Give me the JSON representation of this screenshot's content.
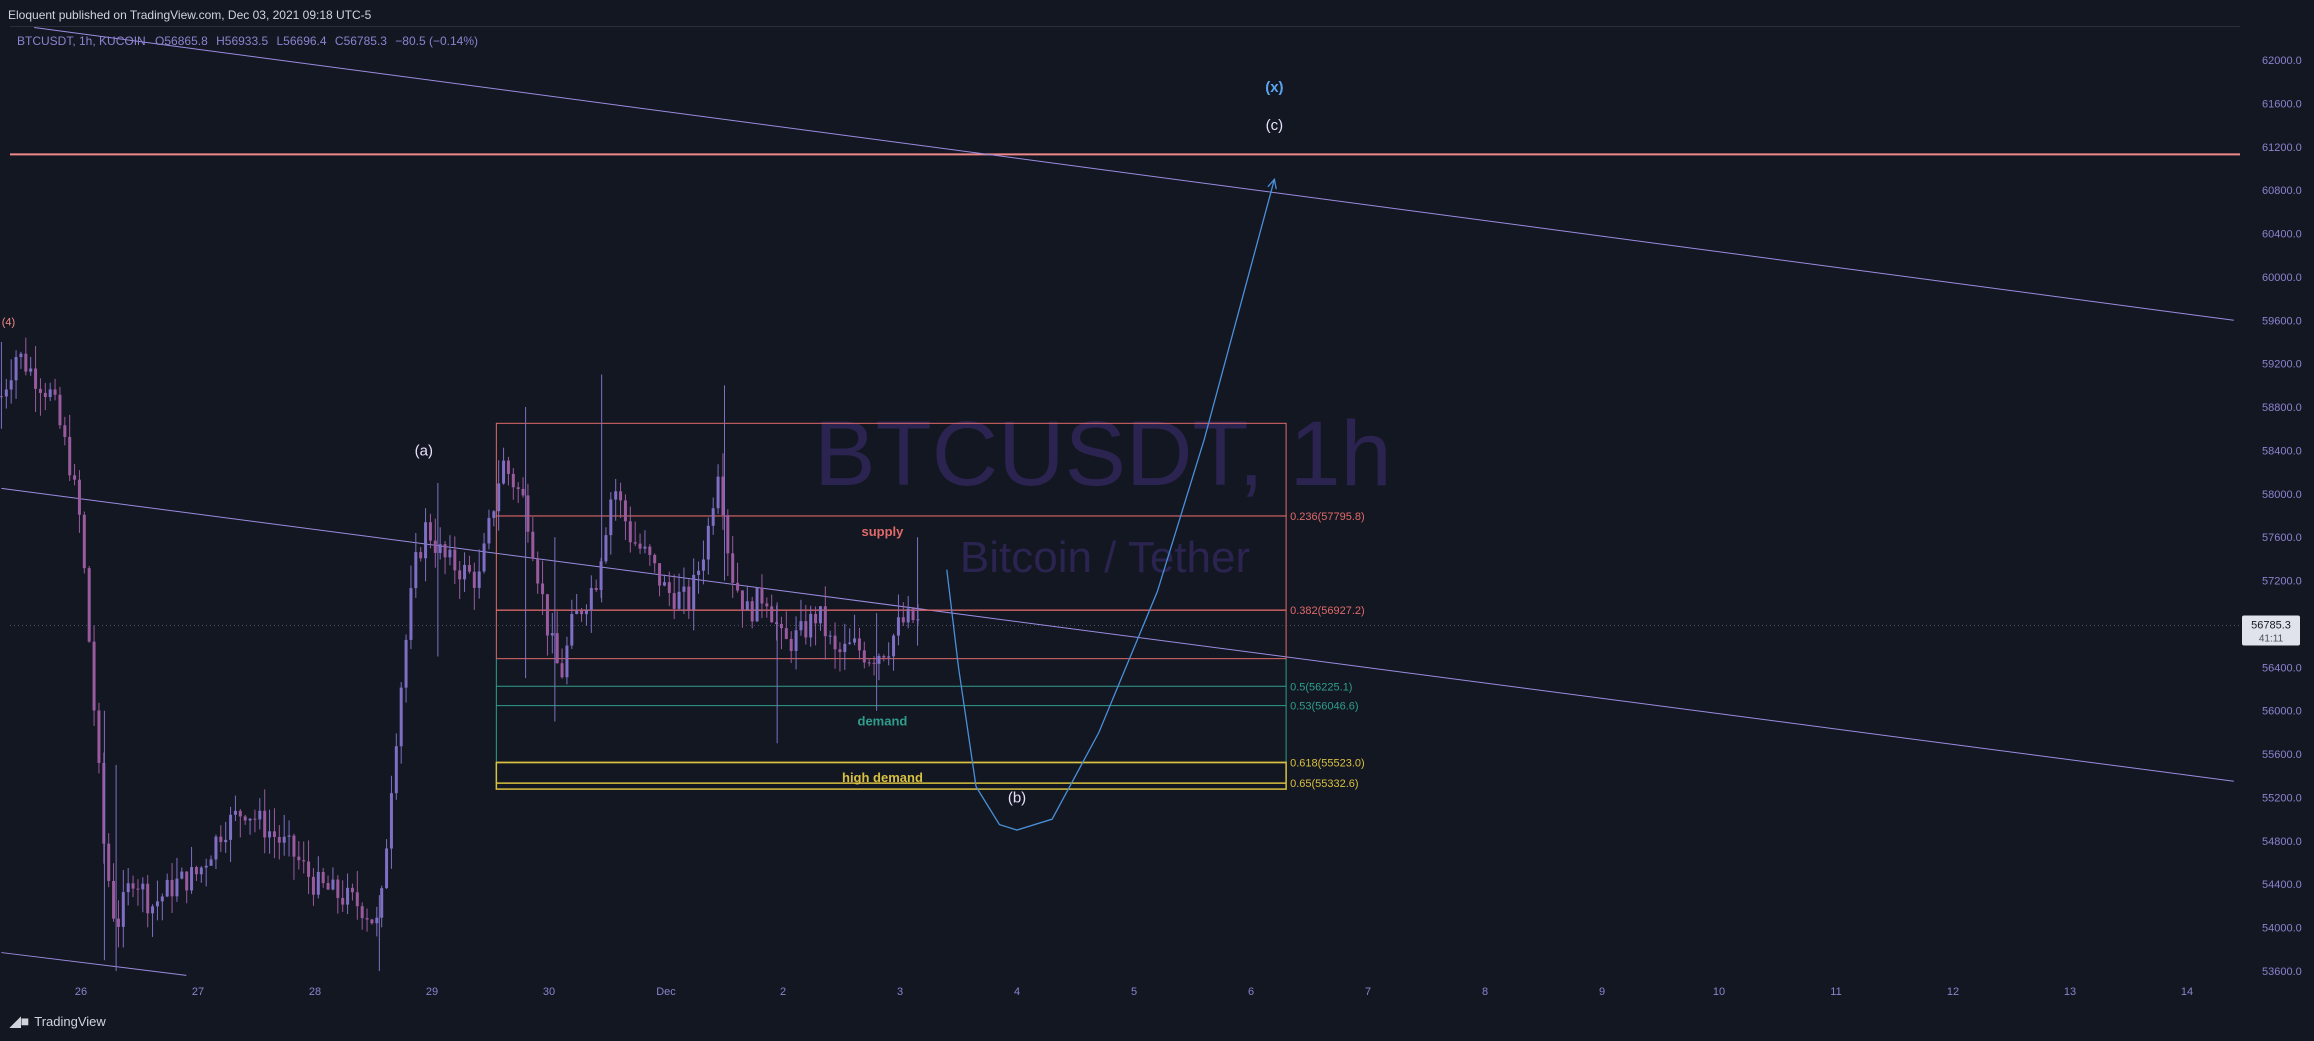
{
  "header": {
    "published": "Eloquent published on TradingView.com, Dec 03, 2021 09:18 UTC-5"
  },
  "symbol_line": {
    "symbol": "BTCUSDT, 1h, KUCOIN",
    "open": "O56865.8",
    "high": "H56933.5",
    "low": "L56696.4",
    "close": "C56785.3",
    "change": "−80.5 (−0.14%)"
  },
  "watermark": {
    "title": "BTCUSDT, 1h",
    "subtitle": "Bitcoin / Tether"
  },
  "footer": {
    "brand": "TradingView"
  },
  "colors": {
    "background": "#131722",
    "candle": "#7e6fc4",
    "candle_down": "#9a5a9e",
    "trendline": "#9b8ce0",
    "resistance": "#f08a8a",
    "projection": "#4a8fd8",
    "supply_box": "#e06a6a",
    "demand_line": "#2f9d8c",
    "high_demand": "#d8c040"
  },
  "chart_data": {
    "type": "candlestick",
    "symbol": "BTCUSDT",
    "timeframe": "1h",
    "exchange": "KUCOIN",
    "last_price": 56785.3,
    "price_label": "56785.3",
    "countdown_label": "41:11",
    "ylim": [
      53500,
      62300
    ],
    "y_ticks": [
      {
        "value": 62000,
        "label": "62000.0"
      },
      {
        "value": 61600,
        "label": "61600.0"
      },
      {
        "value": 61200,
        "label": "61200.0"
      },
      {
        "value": 60800,
        "label": "60800.0"
      },
      {
        "value": 60400,
        "label": "60400.0"
      },
      {
        "value": 60000,
        "label": "60000.0"
      },
      {
        "value": 59600,
        "label": "59600.0"
      },
      {
        "value": 59200,
        "label": "59200.0"
      },
      {
        "value": 58800,
        "label": "58800.0"
      },
      {
        "value": 58400,
        "label": "58400.0"
      },
      {
        "value": 58000,
        "label": "58000.0"
      },
      {
        "value": 57600,
        "label": "57600.0"
      },
      {
        "value": 57200,
        "label": "57200.0"
      },
      {
        "value": 56400,
        "label": "56400.0"
      },
      {
        "value": 56000,
        "label": "56000.0"
      },
      {
        "value": 55600,
        "label": "55600.0"
      },
      {
        "value": 55200,
        "label": "55200.0"
      },
      {
        "value": 54800,
        "label": "54800.0"
      },
      {
        "value": 54400,
        "label": "54400.0"
      },
      {
        "value": 54000,
        "label": "54000.0"
      },
      {
        "value": 53600,
        "label": "53600.0"
      }
    ],
    "x_ticks": [
      {
        "t": 1,
        "label": "26"
      },
      {
        "t": 2,
        "label": "27"
      },
      {
        "t": 3,
        "label": "28"
      },
      {
        "t": 4,
        "label": "29"
      },
      {
        "t": 5,
        "label": "30"
      },
      {
        "t": 6,
        "label": "Dec"
      },
      {
        "t": 7,
        "label": "2"
      },
      {
        "t": 8,
        "label": "3"
      },
      {
        "t": 9,
        "label": "4"
      },
      {
        "t": 10,
        "label": "5"
      },
      {
        "t": 11,
        "label": "6"
      },
      {
        "t": 12,
        "label": "7"
      },
      {
        "t": 13,
        "label": "8"
      },
      {
        "t": 14,
        "label": "9"
      },
      {
        "t": 15,
        "label": "10"
      },
      {
        "t": 16,
        "label": "11"
      },
      {
        "t": 17,
        "label": "12"
      },
      {
        "t": 18,
        "label": "13"
      },
      {
        "t": 19,
        "label": "14"
      }
    ],
    "xlim": [
      0.32,
      19.4
    ],
    "price_path": [
      [
        0.32,
        58900
      ],
      [
        0.45,
        59300
      ],
      [
        0.6,
        59100
      ],
      [
        0.75,
        58900
      ],
      [
        0.9,
        58300
      ],
      [
        1.0,
        57700
      ],
      [
        1.1,
        56200
      ],
      [
        1.2,
        54700
      ],
      [
        1.3,
        54000
      ],
      [
        1.45,
        54500
      ],
      [
        1.6,
        54200
      ],
      [
        1.8,
        54400
      ],
      [
        2.0,
        54500
      ],
      [
        2.2,
        54900
      ],
      [
        2.4,
        55100
      ],
      [
        2.6,
        54900
      ],
      [
        2.8,
        54700
      ],
      [
        3.0,
        54400
      ],
      [
        3.2,
        54300
      ],
      [
        3.4,
        54200
      ],
      [
        3.55,
        54000
      ],
      [
        3.65,
        55300
      ],
      [
        3.75,
        56400
      ],
      [
        3.85,
        57300
      ],
      [
        3.95,
        57700
      ],
      [
        4.1,
        57400
      ],
      [
        4.25,
        57300
      ],
      [
        4.4,
        57200
      ],
      [
        4.6,
        58300
      ],
      [
        4.8,
        57900
      ],
      [
        5.0,
        56700
      ],
      [
        5.1,
        56300
      ],
      [
        5.2,
        56800
      ],
      [
        5.4,
        57200
      ],
      [
        5.55,
        58100
      ],
      [
        5.7,
        57600
      ],
      [
        5.85,
        57400
      ],
      [
        6.0,
        57100
      ],
      [
        6.2,
        57000
      ],
      [
        6.35,
        57600
      ],
      [
        6.45,
        58300
      ],
      [
        6.55,
        57300
      ],
      [
        6.7,
        56900
      ],
      [
        6.85,
        57100
      ],
      [
        7.0,
        56600
      ],
      [
        7.15,
        56700
      ],
      [
        7.3,
        56900
      ],
      [
        7.45,
        56500
      ],
      [
        7.6,
        56600
      ],
      [
        7.75,
        56500
      ],
      [
        7.9,
        56600
      ],
      [
        8.0,
        56800
      ],
      [
        8.1,
        56850
      ],
      [
        8.18,
        56785
      ]
    ],
    "price_high_low": [
      [
        0.32,
        59400,
        58600
      ],
      [
        1.2,
        56000,
        53700
      ],
      [
        1.3,
        55500,
        53600
      ],
      [
        3.55,
        54300,
        53600
      ],
      [
        4.05,
        58100,
        56500
      ],
      [
        4.8,
        58800,
        56300
      ],
      [
        5.05,
        57600,
        55900
      ],
      [
        5.45,
        59100,
        57000
      ],
      [
        6.5,
        59000,
        57200
      ],
      [
        6.95,
        57000,
        55700
      ],
      [
        7.8,
        56900,
        56000
      ],
      [
        8.15,
        57600,
        56600
      ]
    ],
    "annotations": [
      {
        "label": "(4)",
        "t": 0.38,
        "price": 59600
      },
      {
        "label": "(a)",
        "t": 3.93,
        "price": 58400
      },
      {
        "label": "(b)",
        "t": 9.0,
        "price": 55200
      },
      {
        "label": "(c)",
        "t": 11.2,
        "price": 61400
      },
      {
        "label": "(x)",
        "t": 11.2,
        "price": 61750
      }
    ],
    "resistance_line": {
      "price": 61130
    },
    "channel_upper": {
      "start": [
        0.6,
        62300
      ],
      "end": [
        19.4,
        59600
      ]
    },
    "channel_mid": {
      "start": [
        0.32,
        58050
      ],
      "end": [
        19.4,
        55350
      ]
    },
    "channel_lower": {
      "start": [
        0.32,
        53770
      ],
      "end": [
        1.9,
        53560
      ]
    },
    "projection_path": [
      [
        8.4,
        57300
      ],
      [
        8.5,
        56400
      ],
      [
        8.65,
        55300
      ],
      [
        8.85,
        54950
      ],
      [
        9.0,
        54900
      ],
      [
        9.3,
        55000
      ],
      [
        9.7,
        55800
      ],
      [
        10.2,
        57100
      ],
      [
        10.6,
        58500
      ],
      [
        10.9,
        59700
      ],
      [
        11.2,
        60900
      ]
    ],
    "fib_box": {
      "t_start": 4.55,
      "t_end": 11.3
    },
    "fib_levels": [
      {
        "ratio": "0.236",
        "price": 57795.8,
        "label": "0.236(57795.8)",
        "color": "#e06a6a"
      },
      {
        "ratio": "0.382",
        "price": 56927.2,
        "label": "0.382(56927.2)",
        "color": "#e06a6a"
      },
      {
        "ratio": "0.5",
        "price": 56225.1,
        "label": "0.5(56225.1)",
        "color": "#2f9d8c"
      },
      {
        "ratio": "0.53",
        "price": 56046.6,
        "label": "0.53(56046.6)",
        "color": "#2f9d8c"
      },
      {
        "ratio": "0.618",
        "price": 55523.0,
        "label": "0.618(55523.0)",
        "color": "#d8c040"
      },
      {
        "ratio": "0.65",
        "price": 55332.6,
        "label": "0.65(55332.6)",
        "color": "#d8c040"
      }
    ],
    "fib_top": 58650,
    "zones": [
      {
        "label": "supply",
        "t": 7.85,
        "price": 57650,
        "color": "#e06a6a"
      },
      {
        "label": "demand",
        "t": 7.85,
        "price": 55900,
        "color": "#2f9d8c"
      },
      {
        "label": "high demand",
        "t": 7.85,
        "price": 55380,
        "color": "#d8c040"
      }
    ]
  }
}
